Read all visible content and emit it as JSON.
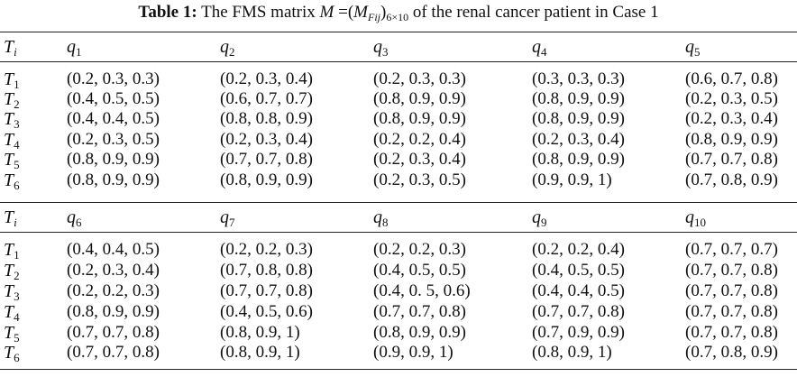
{
  "caption": {
    "label": "Table 1:",
    "text_before": "The FMS matrix",
    "matrix_symbol": "M",
    "equals": "=",
    "element_symbol": "M",
    "element_sub": "Fij",
    "size_sub": "6×10",
    "text_after": "of the renal cancer patient in Case 1"
  },
  "row_header_symbol": "T",
  "row_header_sub": "i",
  "column_symbol": "q",
  "blocks": [
    {
      "columns": [
        "1",
        "2",
        "3",
        "4",
        "5"
      ],
      "rows": [
        {
          "sub": "1",
          "cells": [
            "(0.2, 0.3, 0.3)",
            "(0.2, 0.3, 0.4)",
            "(0.2, 0.3, 0.3)",
            "(0.3, 0.3, 0.3)",
            "(0.6, 0.7, 0.8)"
          ]
        },
        {
          "sub": "2",
          "cells": [
            "(0.4, 0.5, 0.5)",
            "(0.6, 0.7, 0.7)",
            "(0.8, 0.9, 0.9)",
            "(0.8, 0.9, 0.9)",
            "(0.2, 0.3, 0.5)"
          ]
        },
        {
          "sub": "3",
          "cells": [
            "(0.4, 0.4, 0.5)",
            "(0.8, 0.8, 0.9)",
            "(0.8, 0.9, 0.9)",
            "(0.8, 0.9, 0.9)",
            "(0.2, 0.3, 0.4)"
          ]
        },
        {
          "sub": "4",
          "cells": [
            "(0.2, 0.3, 0.5)",
            "(0.2, 0.3, 0.4)",
            "(0.2, 0.2, 0.4)",
            "(0.2, 0.3, 0.4)",
            "(0.8, 0.9, 0.9)"
          ]
        },
        {
          "sub": "5",
          "cells": [
            "(0.8, 0.9, 0.9)",
            "(0.7, 0.7, 0.8)",
            "(0.2, 0.3, 0.4)",
            "(0.8, 0.9, 0.9)",
            "(0.7, 0.7, 0.8)"
          ]
        },
        {
          "sub": "6",
          "cells": [
            "(0.8, 0.9, 0.9)",
            "(0.8, 0.9, 0.9)",
            "(0.2, 0.3, 0.5)",
            "(0.9, 0.9, 1)",
            "(0.7, 0.8, 0.9)"
          ]
        }
      ]
    },
    {
      "columns": [
        "6",
        "7",
        "8",
        "9",
        "10"
      ],
      "rows": [
        {
          "sub": "1",
          "cells": [
            "(0.4, 0.4, 0.5)",
            "(0.2, 0.2, 0.3)",
            "(0.2, 0.2, 0.3)",
            "(0.2, 0.2, 0.4)",
            "(0.7, 0.7, 0.7)"
          ]
        },
        {
          "sub": "2",
          "cells": [
            "(0.2, 0.3, 0.4)",
            "(0.7, 0.8, 0.8)",
            "(0.4, 0.5, 0.5)",
            "(0.4, 0.5, 0.5)",
            "(0.7, 0.7, 0.8)"
          ]
        },
        {
          "sub": "3",
          "cells": [
            "(0.2, 0.2, 0.3)",
            "(0.7, 0.7, 0.8)",
            "(0.4, 0. 5, 0.6)",
            "(0.4, 0.4, 0.5)",
            "(0.7, 0.7, 0.8)"
          ]
        },
        {
          "sub": "4",
          "cells": [
            "(0.8, 0.9, 0.9)",
            "(0.4, 0.5, 0.6)",
            "(0.7, 0.7, 0.8)",
            "(0.7, 0.7, 0.8)",
            "(0.7, 0.7, 0.8)"
          ]
        },
        {
          "sub": "5",
          "cells": [
            "(0.7, 0.7, 0.8)",
            "(0.8, 0.9, 1)",
            "(0.8, 0.9, 0.9)",
            "(0.7, 0.9, 0.9)",
            "(0.7, 0.7, 0.8)"
          ]
        },
        {
          "sub": "6",
          "cells": [
            "(0.7, 0.7, 0.8)",
            "(0.8, 0.9, 1)",
            "(0.9, 0.9, 1)",
            "(0.8, 0.9, 1)",
            "(0.7, 0.8, 0.9)"
          ]
        }
      ]
    }
  ]
}
